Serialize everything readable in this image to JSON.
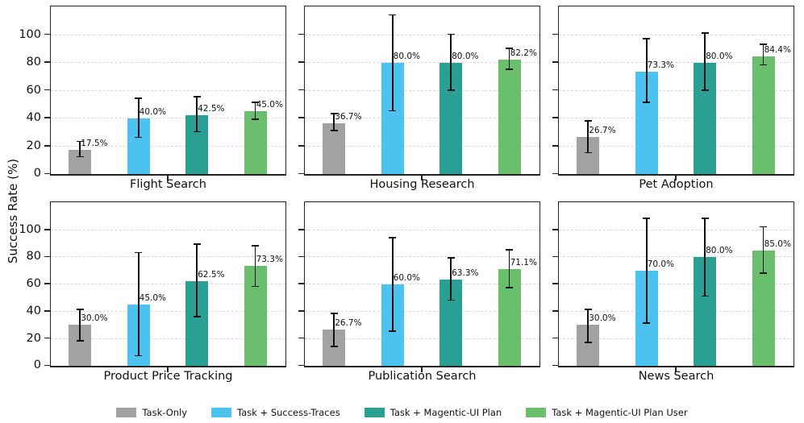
{
  "chart_data": {
    "type": "bar",
    "title": "",
    "ylabel": "Success Rate (%)",
    "ylim": [
      0,
      120
    ],
    "yticks": [
      0,
      20,
      40,
      60,
      80,
      100
    ],
    "grid": "horizontal-dashed",
    "legend_position": "bottom-center",
    "error_bars": true,
    "series": [
      {
        "name": "Task-Only",
        "color": "#a2a2a2"
      },
      {
        "name": "Task + Success-Traces",
        "color": "#4cc2f1"
      },
      {
        "name": "Task + Magentic-UI Plan",
        "color": "#2aa094"
      },
      {
        "name": "Task + Magentic-UI Plan User",
        "color": "#69bf6b"
      }
    ],
    "subplots": [
      {
        "category": "Flight Search",
        "values": [
          17.5,
          40.0,
          42.5,
          45.0
        ],
        "value_labels": [
          "17.5%",
          "40.0%",
          "42.5%",
          "45.0%"
        ],
        "error_low": [
          12,
          26,
          30,
          39
        ],
        "error_high": [
          23,
          54,
          55,
          51
        ]
      },
      {
        "category": "Housing Research",
        "values": [
          36.7,
          80.0,
          80.0,
          82.2
        ],
        "value_labels": [
          "36.7%",
          "80.0%",
          "80.0%",
          "82.2%"
        ],
        "error_low": [
          31,
          45,
          60,
          75
        ],
        "error_high": [
          43,
          114,
          100,
          90
        ]
      },
      {
        "category": "Pet Adoption",
        "values": [
          26.7,
          73.3,
          80.0,
          84.4
        ],
        "value_labels": [
          "26.7%",
          "73.3%",
          "80.0%",
          "84.4%"
        ],
        "error_low": [
          15,
          51,
          60,
          78
        ],
        "error_high": [
          38,
          97,
          101,
          93
        ]
      },
      {
        "category": "Product Price Tracking",
        "values": [
          30.0,
          45.0,
          62.5,
          73.3
        ],
        "value_labels": [
          "30.0%",
          "45.0%",
          "62.5%",
          "73.3%"
        ],
        "error_low": [
          18,
          7,
          36,
          58
        ],
        "error_high": [
          41,
          83,
          89,
          88
        ]
      },
      {
        "category": "Publication Search",
        "values": [
          26.7,
          60.0,
          63.3,
          71.1
        ],
        "value_labels": [
          "26.7%",
          "60.0%",
          "63.3%",
          "71.1%"
        ],
        "error_low": [
          14,
          25,
          48,
          57
        ],
        "error_high": [
          38,
          94,
          79,
          85
        ]
      },
      {
        "category": "News Search",
        "values": [
          30.0,
          70.0,
          80.0,
          85.0
        ],
        "value_labels": [
          "30.0%",
          "70.0%",
          "80.0%",
          "85.0%"
        ],
        "error_low": [
          17,
          31,
          51,
          68
        ],
        "error_high": [
          41,
          108,
          108,
          102
        ]
      }
    ]
  }
}
